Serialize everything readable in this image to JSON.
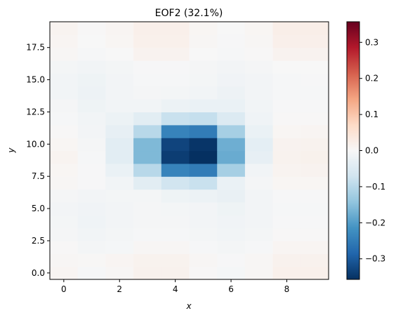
{
  "chart_data": {
    "type": "heatmap",
    "title": "EOF2 (32.1%)",
    "xlabel": "x",
    "ylabel": "y",
    "cmap": "RdBu_r",
    "grid": false,
    "x_ticks": [
      "0",
      "2",
      "4",
      "6",
      "8"
    ],
    "x_tick_values": [
      0,
      2,
      4,
      6,
      8
    ],
    "y_ticks": [
      "0.0",
      "2.5",
      "5.0",
      "7.5",
      "10.0",
      "12.5",
      "15.0",
      "17.5"
    ],
    "y_tick_values": [
      0,
      2.5,
      5,
      7.5,
      10,
      12.5,
      15,
      17.5
    ],
    "xlim": [
      -0.5,
      9.5
    ],
    "ylim": [
      -0.5,
      19.5
    ],
    "x_centers": [
      0,
      1,
      2,
      3,
      4,
      5,
      6,
      7,
      8,
      9
    ],
    "y_centers": [
      0,
      1,
      2,
      3,
      4,
      5,
      6,
      7,
      8,
      9,
      10,
      11,
      12,
      13,
      14,
      15,
      16,
      17,
      18,
      19
    ],
    "colorbar": {
      "vmin": -0.357,
      "vmax": 0.357,
      "ticks": [
        -0.3,
        -0.2,
        -0.1,
        0.0,
        0.1,
        0.2,
        0.3
      ],
      "tick_labels": [
        "−0.3",
        "−0.2",
        "−0.1",
        "0.0",
        "0.1",
        "0.2",
        "0.3"
      ]
    },
    "values": [
      [
        0.008,
        -0.004,
        0.004,
        0.015,
        0.015,
        0.002,
        -0.005,
        0.004,
        0.018,
        0.018
      ],
      [
        0.005,
        0.003,
        0.007,
        0.014,
        0.014,
        0.004,
        -0.002,
        0.005,
        0.015,
        0.015
      ],
      [
        0.002,
        -0.008,
        -0.005,
        0.004,
        0.004,
        -0.003,
        -0.008,
        -0.004,
        0.008,
        0.008
      ],
      [
        -0.006,
        -0.012,
        -0.008,
        -0.004,
        -0.004,
        -0.008,
        -0.012,
        -0.008,
        0.002,
        0.002
      ],
      [
        -0.008,
        -0.015,
        -0.01,
        -0.006,
        -0.006,
        -0.01,
        -0.014,
        -0.01,
        -0.002,
        -0.002
      ],
      [
        -0.01,
        -0.014,
        -0.01,
        -0.006,
        -0.008,
        -0.01,
        -0.016,
        -0.01,
        -0.004,
        -0.004
      ],
      [
        -0.006,
        -0.01,
        -0.008,
        -0.008,
        -0.016,
        -0.02,
        -0.026,
        -0.01,
        -0.002,
        -0.002
      ],
      [
        0.004,
        -0.002,
        -0.012,
        -0.04,
        -0.07,
        -0.08,
        -0.025,
        -0.006,
        0.006,
        0.006
      ],
      [
        0.006,
        -0.002,
        -0.025,
        -0.1,
        -0.24,
        -0.25,
        -0.12,
        -0.012,
        0.01,
        0.012
      ],
      [
        0.01,
        -0.004,
        -0.04,
        -0.16,
        -0.34,
        -0.357,
        -0.18,
        -0.03,
        0.014,
        0.016
      ],
      [
        0.006,
        -0.006,
        -0.04,
        -0.16,
        -0.33,
        -0.35,
        -0.175,
        -0.035,
        0.012,
        0.014
      ],
      [
        0.002,
        -0.01,
        -0.03,
        -0.1,
        -0.24,
        -0.25,
        -0.12,
        -0.025,
        0.006,
        0.008
      ],
      [
        -0.004,
        -0.012,
        -0.02,
        -0.04,
        -0.08,
        -0.085,
        -0.05,
        -0.015,
        0.002,
        0.002
      ],
      [
        -0.006,
        -0.016,
        -0.012,
        -0.012,
        -0.02,
        -0.025,
        -0.025,
        -0.012,
        -0.002,
        -0.002
      ],
      [
        -0.012,
        -0.018,
        -0.01,
        -0.006,
        -0.008,
        -0.012,
        -0.018,
        -0.01,
        -0.004,
        -0.004
      ],
      [
        -0.012,
        -0.016,
        -0.01,
        -0.004,
        -0.004,
        -0.008,
        -0.014,
        -0.01,
        -0.004,
        -0.002
      ],
      [
        -0.008,
        -0.012,
        -0.008,
        -0.002,
        -0.002,
        -0.006,
        -0.01,
        -0.006,
        0.0,
        0.0
      ],
      [
        0.004,
        -0.004,
        0.0,
        0.012,
        0.012,
        0.0,
        -0.004,
        0.002,
        0.012,
        0.012
      ],
      [
        0.008,
        0.0,
        0.006,
        0.018,
        0.018,
        0.004,
        -0.002,
        0.004,
        0.02,
        0.02
      ],
      [
        0.01,
        0.002,
        0.008,
        0.02,
        0.02,
        0.006,
        0.0,
        0.006,
        0.022,
        0.022
      ]
    ]
  }
}
